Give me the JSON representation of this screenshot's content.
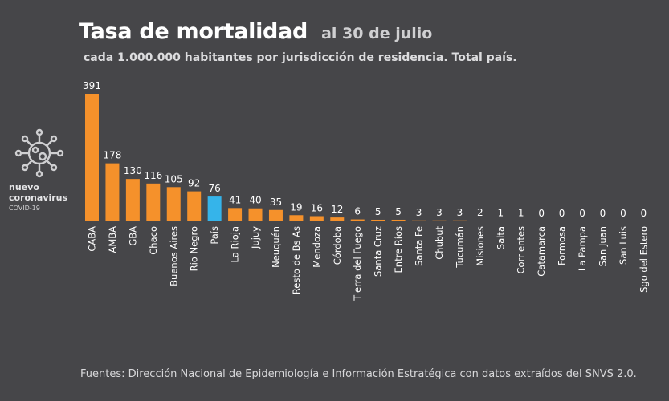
{
  "header": {
    "title": "Tasa de mortalidad",
    "date": "al 30 de julio",
    "subtitle": "cada 1.000.000 habitantes por jurisdicción de residencia. Total país."
  },
  "logo": {
    "line1": "nuevo",
    "line2": "coronavirus",
    "line3": "COVID-19",
    "icon": "virus-icon"
  },
  "footer": {
    "source": "Fuentes: Dirección Nacional de Epidemiología e Información Estratégica con datos extraídos del SNVS 2.0."
  },
  "colors": {
    "background": "#464649",
    "bar": "#f5912b",
    "highlight": "#35b4ea",
    "text": "#ffffff"
  },
  "chart_data": {
    "type": "bar",
    "title": "Tasa de mortalidad",
    "subtitle": "cada 1.000.000 habitantes por jurisdicción de residencia. Total país.",
    "xlabel": "",
    "ylabel": "",
    "ylim": [
      0,
      391
    ],
    "grid": false,
    "highlight_category": "País",
    "categories": [
      "CABA",
      "AMBA",
      "GBA",
      "Chaco",
      "Buenos Aires",
      "Río Negro",
      "País",
      "La Rioja",
      "Jujuy",
      "Neuquén",
      "Resto de Bs As",
      "Mendoza",
      "Córdoba",
      "Tierra del Fuego",
      "Santa Cruz",
      "Entre Ríos",
      "Santa Fe",
      "Chubut",
      "Tucumán",
      "Misiones",
      "Salta",
      "Corrientes",
      "Catamarca",
      "Formosa",
      "La Pampa",
      "San Juan",
      "San Luis",
      "Sgo del Estero"
    ],
    "values": [
      391,
      178,
      130,
      116,
      105,
      92,
      76,
      41,
      40,
      35,
      19,
      16,
      12,
      6,
      5,
      5,
      3,
      3,
      3,
      2,
      1,
      1,
      0,
      0,
      0,
      0,
      0,
      0
    ]
  }
}
